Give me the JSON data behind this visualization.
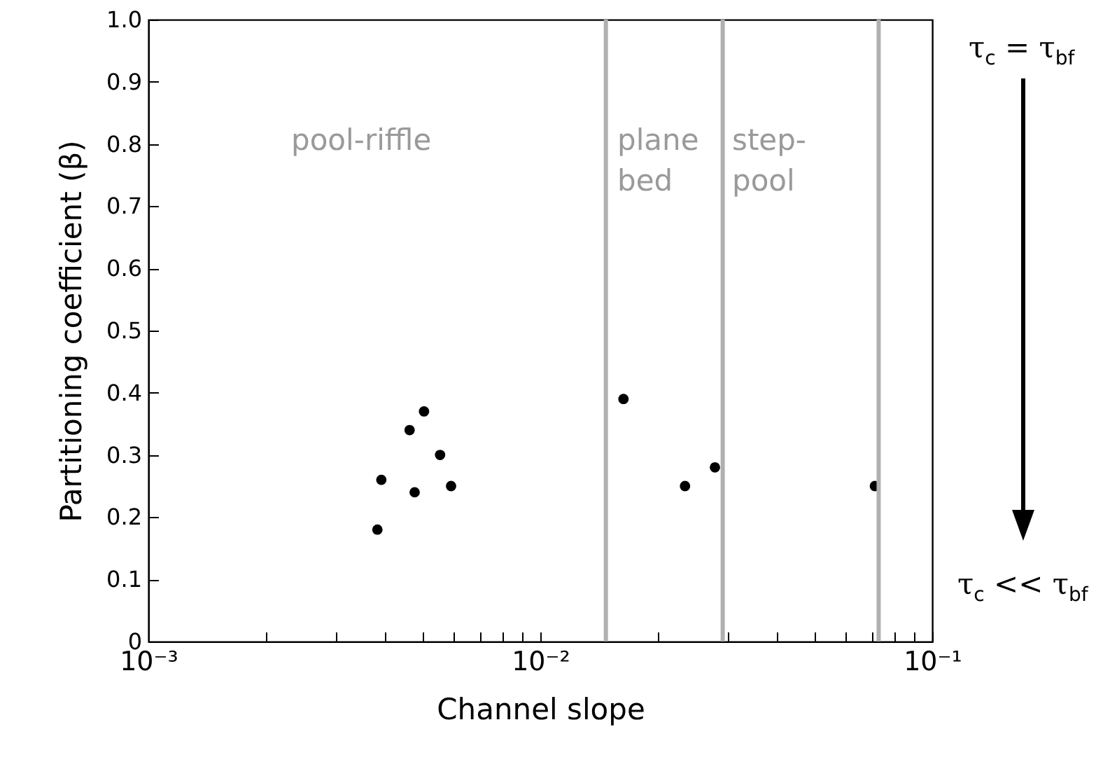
{
  "chart_data": {
    "type": "scatter",
    "xlabel": "Channel slope",
    "ylabel": "Partitioning coefficient (β)",
    "log": "x",
    "x": [
      0.00384,
      0.00393,
      0.00464,
      0.00505,
      0.00478,
      0.00555,
      0.00592,
      0.0163,
      0.0234,
      0.0279,
      0.0714
    ],
    "series": [
      {
        "color": "#000000",
        "values": [
          0.18,
          0.26,
          0.34,
          0.37,
          0.24,
          0.3,
          0.25,
          0.39,
          0.25,
          0.28,
          0.25
        ]
      }
    ],
    "marker": "circle",
    "xlim": [
      0.001,
      0.1
    ],
    "xticks": [
      {
        "value": 0.001,
        "label": "10⁻³"
      },
      {
        "value": 0.002,
        "label": null
      },
      {
        "value": 0.003,
        "label": null
      },
      {
        "value": 0.004,
        "label": null
      },
      {
        "value": 0.005,
        "label": null
      },
      {
        "value": 0.006,
        "label": null
      },
      {
        "value": 0.007,
        "label": null
      },
      {
        "value": 0.008,
        "label": null
      },
      {
        "value": 0.009,
        "label": null
      },
      {
        "value": 0.01,
        "label": "10⁻²"
      },
      {
        "value": 0.02,
        "label": null
      },
      {
        "value": 0.03,
        "label": null
      },
      {
        "value": 0.04,
        "label": null
      },
      {
        "value": 0.05,
        "label": null
      },
      {
        "value": 0.06,
        "label": null
      },
      {
        "value": 0.07,
        "label": null
      },
      {
        "value": 0.08,
        "label": null
      },
      {
        "value": 0.09,
        "label": null
      },
      {
        "value": 0.1,
        "label": "10⁻¹"
      }
    ],
    "ylim": [
      0,
      1
    ],
    "yticks": [
      0,
      0.1,
      0.2,
      0.3,
      0.4,
      0.5,
      0.6,
      0.7,
      0.8,
      0.9,
      {
        "value": 1,
        "label": "1.0"
      }
    ],
    "ref_lines": [
      {
        "axis": "x",
        "value": 0.0147,
        "color": "#b0b0b0"
      },
      {
        "axis": "x",
        "value": 0.0292,
        "color": "#b0b0b0"
      },
      {
        "axis": "x",
        "value": 0.073,
        "color": "#b0b0b0"
      }
    ],
    "annotations": [
      "pool-riffle",
      "plane\nbed",
      "step-\npool",
      "τ$_{c}$ = τ$_{bf}$",
      "τ$_{c}$ << τ$_{bf}$"
    ]
  }
}
